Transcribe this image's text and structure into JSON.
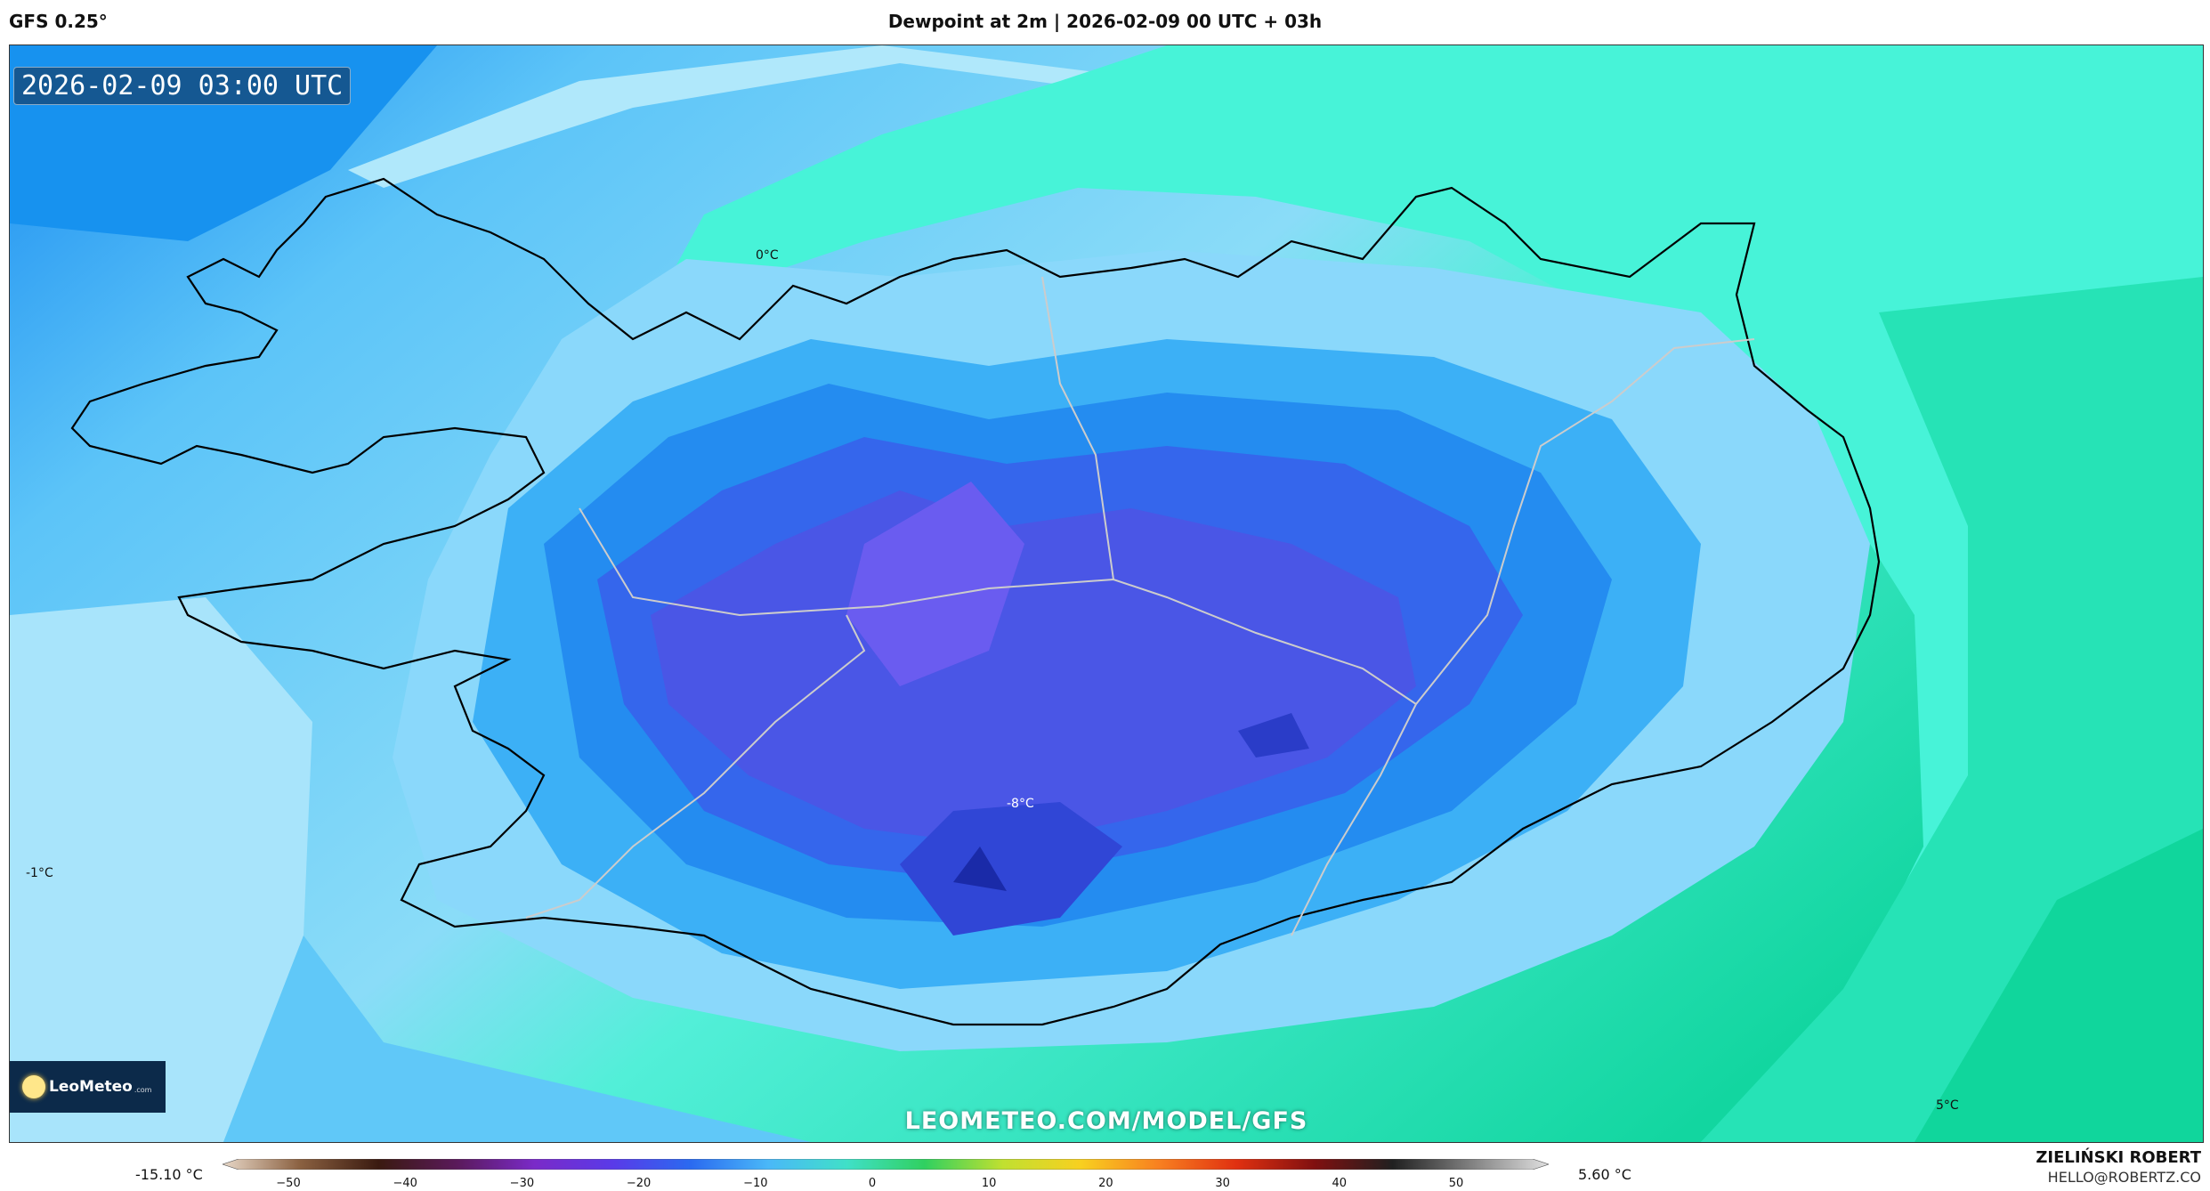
{
  "header": {
    "model": "GFS 0.25°",
    "title": "Dewpoint at 2m | 2026-02-09 00 UTC + 03h"
  },
  "map": {
    "timestamp": "2026-02-09 03:00 UTC",
    "site": "LEOMETEO.COM/MODEL/GFS",
    "logo": {
      "name": "LeoMeteo",
      "suffix": ".com"
    },
    "contour_labels": [
      "0°C",
      "-8°C",
      "-1°C",
      "5°C"
    ]
  },
  "colorbar": {
    "min_label": "-15.10 °C",
    "max_label": "5.60 °C",
    "ticks": [
      "−50",
      "−40",
      "−30",
      "−20",
      "−10",
      "0",
      "10",
      "20",
      "30",
      "40",
      "50"
    ],
    "colors": [
      "#e8d8c8",
      "#8a6040",
      "#3a1a10",
      "#5a1a5a",
      "#7a2ac8",
      "#5a3ae8",
      "#2a6af0",
      "#4ab8f8",
      "#40e0c8",
      "#30d060",
      "#c0e030",
      "#f8d020",
      "#f88020",
      "#e03010",
      "#801010",
      "#202020",
      "#808080",
      "#e0e0e0"
    ]
  },
  "footer": {
    "author": "ZIELIŃSKI ROBERT",
    "email": "HELLO@ROBERTZ.CO"
  }
}
